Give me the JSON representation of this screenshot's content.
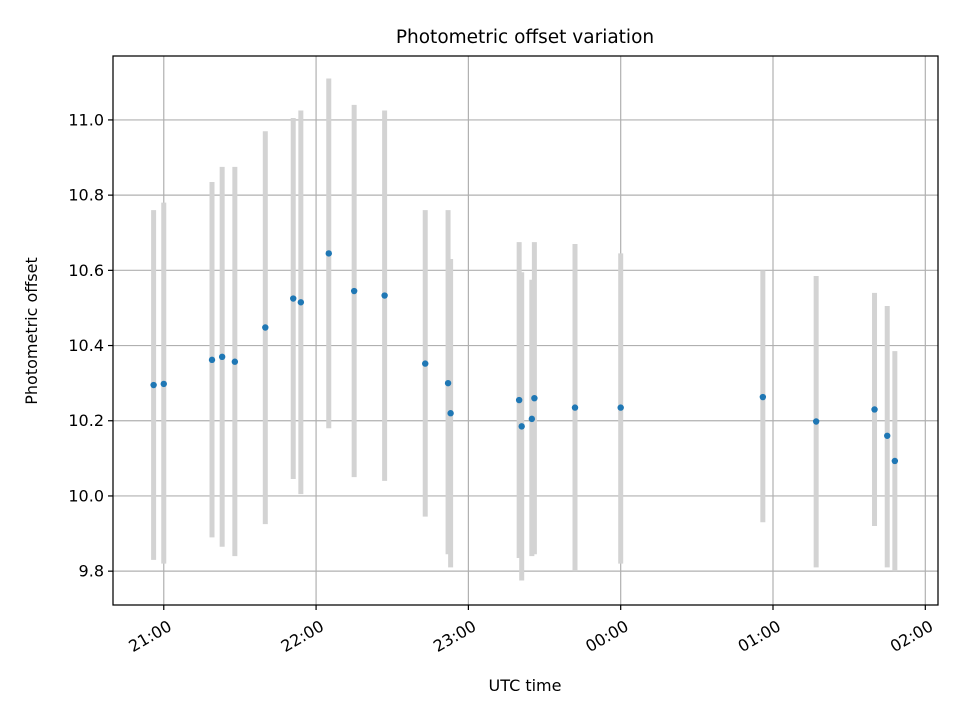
{
  "chart_data": {
    "type": "scatter",
    "title": "Photometric offset variation",
    "xlabel": "UTC time",
    "ylabel": "Photometric offset",
    "grid": true,
    "xlim": [
      "20:40",
      "02:05"
    ],
    "ylim": [
      9.71,
      11.17
    ],
    "x_ticks": [
      "21:00",
      "22:00",
      "23:00",
      "00:00",
      "01:00",
      "02:00"
    ],
    "y_ticks": [
      "9.8",
      "10.0",
      "10.2",
      "10.4",
      "10.6",
      "10.8",
      "11.0"
    ],
    "colors": {
      "points": "#1f77b4",
      "errorbars": "#d3d3d3",
      "grid": "#b0b0b0"
    },
    "points": [
      {
        "x": "20:56",
        "y": 10.295,
        "ylow": 9.83,
        "yhigh": 10.76
      },
      {
        "x": "21:00",
        "y": 10.298,
        "ylow": 9.82,
        "yhigh": 10.78
      },
      {
        "x": "21:19",
        "y": 10.362,
        "ylow": 9.89,
        "yhigh": 10.835
      },
      {
        "x": "21:23",
        "y": 10.37,
        "ylow": 9.865,
        "yhigh": 10.875
      },
      {
        "x": "21:28",
        "y": 10.357,
        "ylow": 9.84,
        "yhigh": 10.875
      },
      {
        "x": "21:40",
        "y": 10.448,
        "ylow": 9.925,
        "yhigh": 10.97
      },
      {
        "x": "21:51",
        "y": 10.525,
        "ylow": 10.045,
        "yhigh": 11.005
      },
      {
        "x": "21:54",
        "y": 10.515,
        "ylow": 10.005,
        "yhigh": 11.025
      },
      {
        "x": "22:05",
        "y": 10.645,
        "ylow": 10.18,
        "yhigh": 11.11
      },
      {
        "x": "22:15",
        "y": 10.545,
        "ylow": 10.05,
        "yhigh": 11.04
      },
      {
        "x": "22:27",
        "y": 10.533,
        "ylow": 10.04,
        "yhigh": 11.025
      },
      {
        "x": "22:43",
        "y": 10.352,
        "ylow": 9.945,
        "yhigh": 10.76
      },
      {
        "x": "22:52",
        "y": 10.3,
        "ylow": 9.845,
        "yhigh": 10.76
      },
      {
        "x": "22:53",
        "y": 10.22,
        "ylow": 9.81,
        "yhigh": 10.63
      },
      {
        "x": "23:20",
        "y": 10.255,
        "ylow": 9.835,
        "yhigh": 10.675
      },
      {
        "x": "23:21",
        "y": 10.185,
        "ylow": 9.775,
        "yhigh": 10.595
      },
      {
        "x": "23:25",
        "y": 10.205,
        "ylow": 9.84,
        "yhigh": 10.575
      },
      {
        "x": "23:26",
        "y": 10.26,
        "ylow": 9.845,
        "yhigh": 10.675
      },
      {
        "x": "23:42",
        "y": 10.235,
        "ylow": 9.8,
        "yhigh": 10.67
      },
      {
        "x": "00:00",
        "y": 10.235,
        "ylow": 9.82,
        "yhigh": 10.645
      },
      {
        "x": "00:56",
        "y": 10.263,
        "ylow": 9.93,
        "yhigh": 10.6
      },
      {
        "x": "01:17",
        "y": 10.198,
        "ylow": 9.81,
        "yhigh": 10.585
      },
      {
        "x": "01:40",
        "y": 10.23,
        "ylow": 9.92,
        "yhigh": 10.54
      },
      {
        "x": "01:45",
        "y": 10.16,
        "ylow": 9.81,
        "yhigh": 10.505
      },
      {
        "x": "01:48",
        "y": 10.093,
        "ylow": 9.8,
        "yhigh": 10.385
      }
    ]
  }
}
